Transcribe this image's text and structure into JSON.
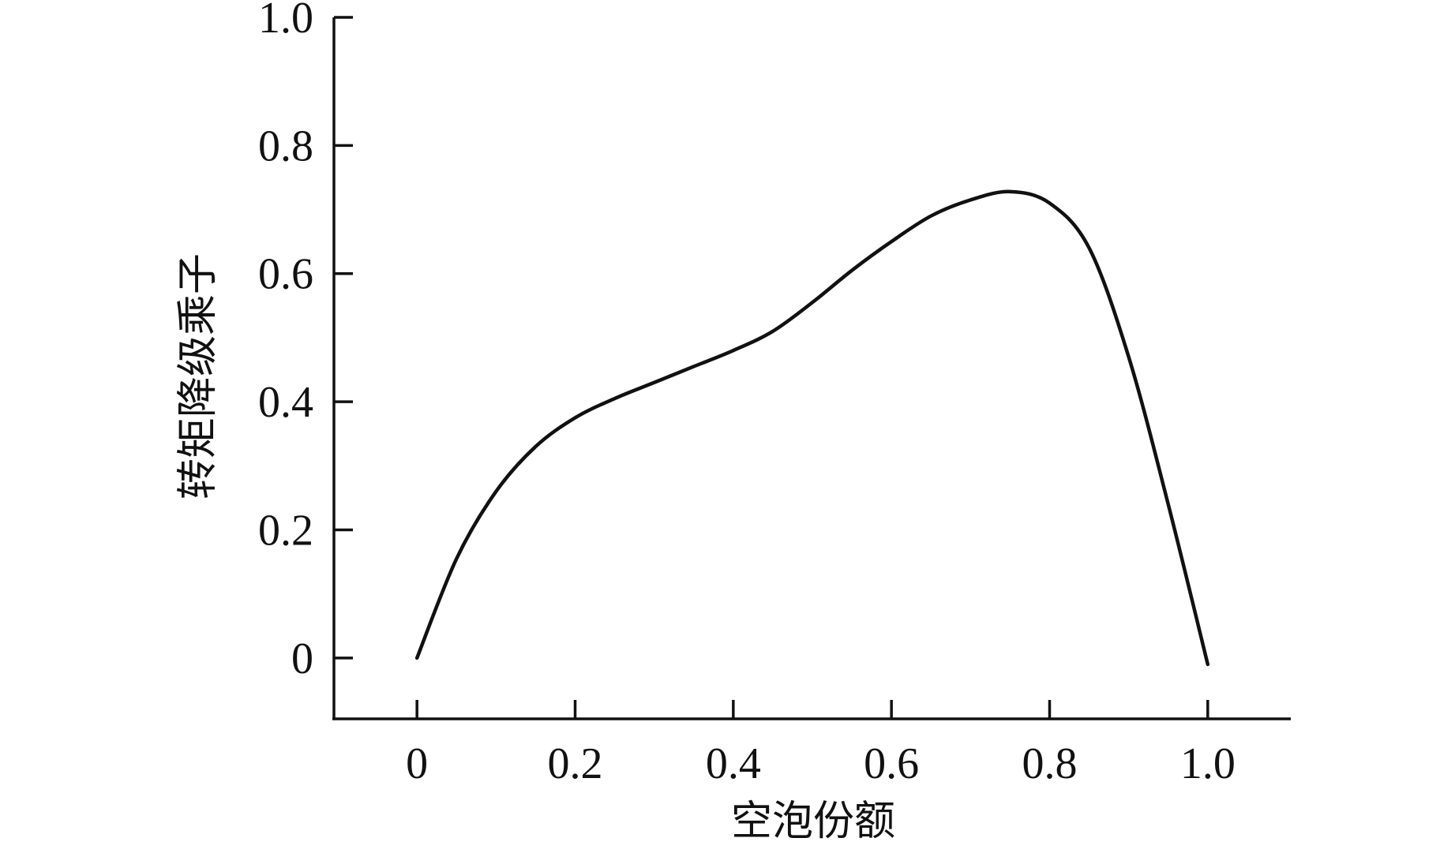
{
  "chart_data": {
    "type": "line",
    "title": "",
    "xlabel": "空泡份额",
    "ylabel": "转矩降级乘子",
    "xlim": [
      -0.105,
      1.105
    ],
    "ylim": [
      -0.095,
      1.0
    ],
    "xticks": [
      0,
      0.2,
      0.4,
      0.6,
      0.8,
      1.0
    ],
    "xtick_labels": [
      "0",
      "0.2",
      "0.4",
      "0.6",
      "0.8",
      "1.0"
    ],
    "yticks": [
      0,
      0.2,
      0.4,
      0.6,
      0.8,
      1.0
    ],
    "ytick_labels": [
      "0",
      "0.2",
      "0.4",
      "0.6",
      "0.8",
      "1.0"
    ],
    "grid": false,
    "legend": "none",
    "line_color": "#111111",
    "series": [
      {
        "x": [
          0,
          0.05,
          0.1,
          0.15,
          0.2,
          0.25,
          0.3,
          0.35,
          0.4,
          0.45,
          0.5,
          0.55,
          0.6,
          0.65,
          0.7,
          0.75,
          0.8,
          0.85,
          0.9,
          0.95,
          1.0
        ],
        "y": [
          0,
          0.155,
          0.26,
          0.33,
          0.375,
          0.405,
          0.43,
          0.455,
          0.48,
          0.51,
          0.555,
          0.605,
          0.65,
          0.69,
          0.715,
          0.728,
          0.71,
          0.64,
          0.47,
          0.24,
          -0.01
        ]
      }
    ]
  }
}
